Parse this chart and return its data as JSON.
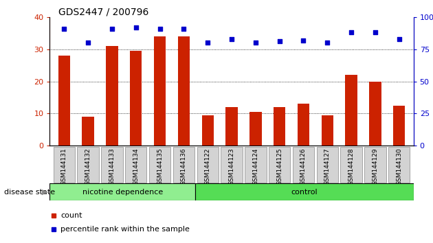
{
  "title": "GDS2447 / 200796",
  "categories": [
    "GSM144131",
    "GSM144132",
    "GSM144133",
    "GSM144134",
    "GSM144135",
    "GSM144136",
    "GSM144122",
    "GSM144123",
    "GSM144124",
    "GSM144125",
    "GSM144126",
    "GSM144127",
    "GSM144128",
    "GSM144129",
    "GSM144130"
  ],
  "counts": [
    28,
    9,
    31,
    29.5,
    34,
    34,
    9.5,
    12,
    10.5,
    12,
    13,
    9.5,
    22,
    20,
    12.5
  ],
  "percentiles": [
    91,
    80,
    91,
    92,
    91,
    91,
    80,
    83,
    80,
    81,
    82,
    80,
    88,
    88,
    83
  ],
  "bar_color": "#cc2200",
  "dot_color": "#0000cc",
  "ylim_left": [
    0,
    40
  ],
  "ylim_right": [
    0,
    100
  ],
  "yticks_left": [
    0,
    10,
    20,
    30,
    40
  ],
  "yticks_right": [
    0,
    25,
    50,
    75,
    100
  ],
  "ytick_labels_right": [
    "0",
    "25",
    "50",
    "75",
    "100%"
  ],
  "ytick_labels_left": [
    "0",
    "10",
    "20",
    "30",
    "40"
  ],
  "group1_label": "nicotine dependence",
  "group2_label": "control",
  "group1_count": 6,
  "group2_count": 9,
  "group1_color": "#90ee90",
  "group2_color": "#55dd55",
  "disease_state_label": "disease state",
  "legend_count_label": "count",
  "legend_percentile_label": "percentile rank within the sample",
  "plot_bg": "#ffffff",
  "title_fontsize": 10,
  "axis_label_color_left": "#cc2200",
  "axis_label_color_right": "#0000cc",
  "grid_color": "black",
  "grid_style": "dotted",
  "grid_vals": [
    10,
    20,
    30
  ],
  "bar_width": 0.5,
  "dot_size": 18
}
